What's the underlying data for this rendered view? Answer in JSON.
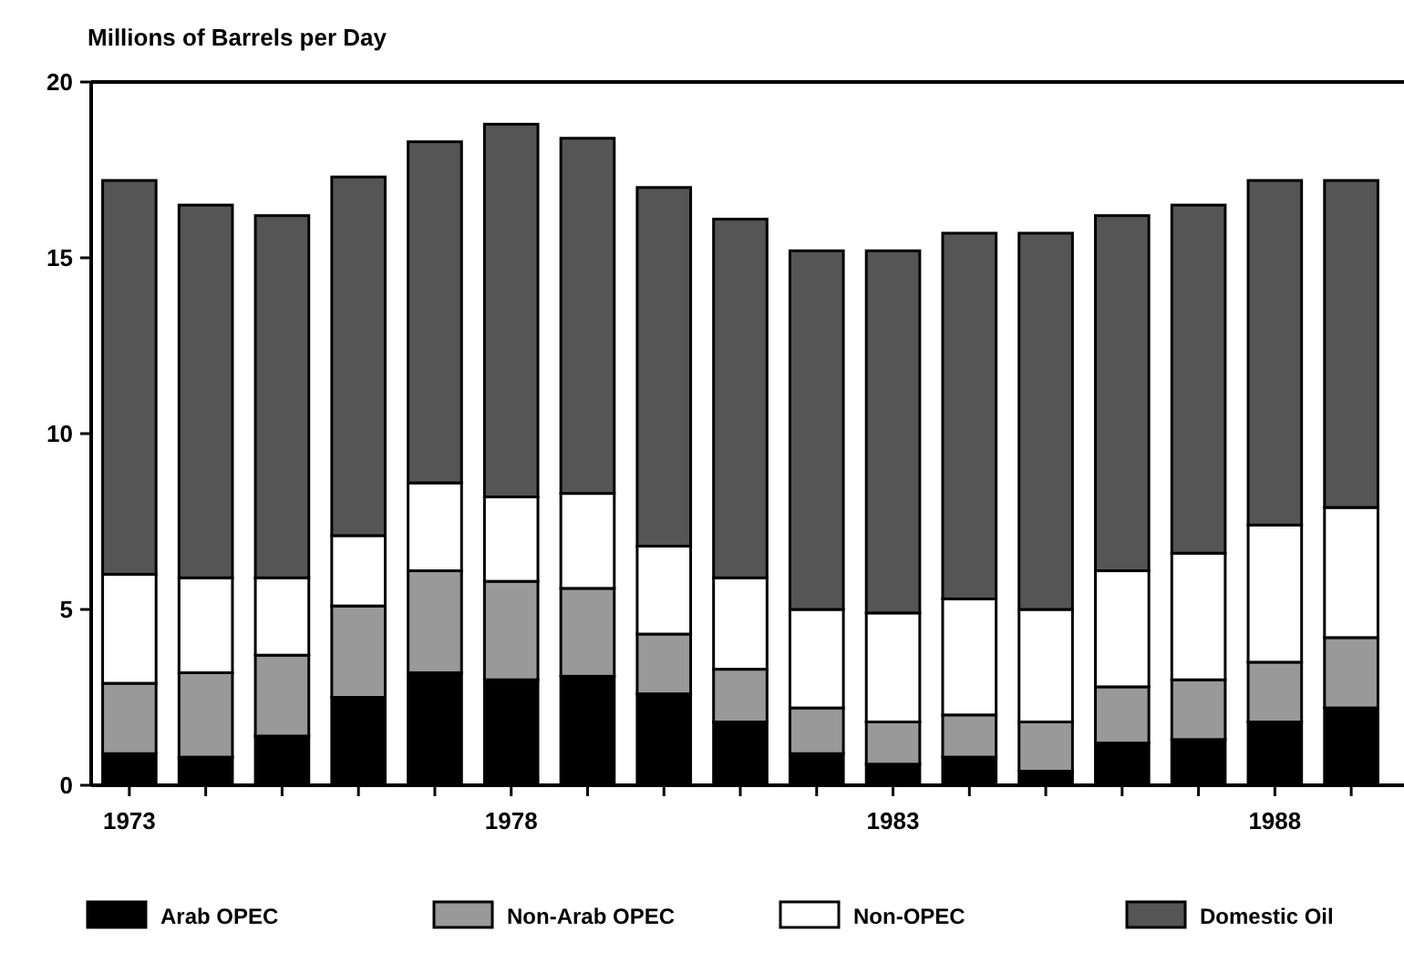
{
  "chart_data": {
    "type": "bar",
    "stacked": true,
    "ylabel": "Millions of Barrels per Day",
    "categories": [
      "1973",
      null,
      null,
      null,
      null,
      "1978",
      null,
      null,
      null,
      null,
      "1983",
      null,
      null,
      null,
      null,
      "1988",
      null
    ],
    "series": [
      {
        "name": "Arab OPEC",
        "color": "#000000",
        "values": [
          0.9,
          0.8,
          1.4,
          2.5,
          3.2,
          3.0,
          3.1,
          2.6,
          1.8,
          0.9,
          0.6,
          0.8,
          0.4,
          1.2,
          1.3,
          1.8,
          2.2
        ]
      },
      {
        "name": "Non-Arab OPEC",
        "color": "#999999",
        "values": [
          2.0,
          2.4,
          2.3,
          2.6,
          2.9,
          2.8,
          2.5,
          1.7,
          1.5,
          1.3,
          1.2,
          1.2,
          1.4,
          1.6,
          1.7,
          1.7,
          2.0
        ]
      },
      {
        "name": "Non-OPEC",
        "color": "#ffffff",
        "values": [
          3.1,
          2.7,
          2.2,
          2.0,
          2.5,
          2.4,
          2.7,
          2.5,
          2.6,
          2.8,
          3.1,
          3.3,
          3.2,
          3.3,
          3.6,
          3.9,
          3.7
        ]
      },
      {
        "name": "Domestic Oil",
        "color": "#555555",
        "values": [
          11.2,
          10.6,
          10.3,
          10.2,
          9.7,
          10.6,
          10.1,
          10.2,
          10.2,
          10.2,
          10.3,
          10.4,
          10.7,
          10.1,
          9.9,
          9.8,
          9.3
        ]
      }
    ],
    "ylim": [
      0,
      20
    ],
    "yticks": [
      0,
      5,
      10,
      15,
      20
    ],
    "grid": false,
    "legend": "bottom"
  }
}
